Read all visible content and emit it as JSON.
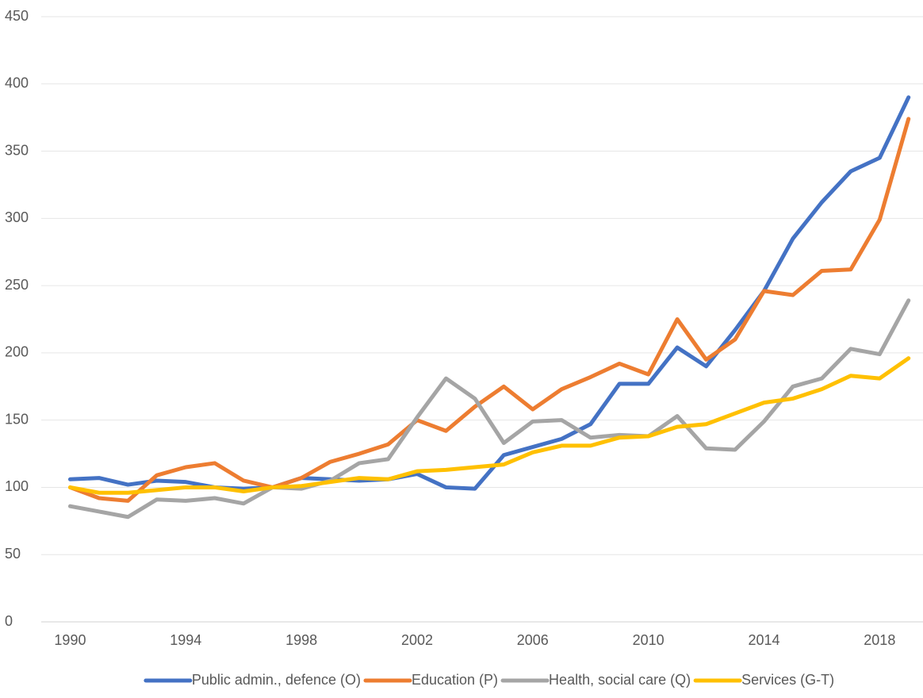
{
  "chart_data": {
    "type": "line",
    "x": [
      1990,
      1991,
      1992,
      1993,
      1994,
      1995,
      1996,
      1997,
      1998,
      1999,
      2000,
      2001,
      2002,
      2003,
      2004,
      2005,
      2006,
      2007,
      2008,
      2009,
      2010,
      2011,
      2012,
      2013,
      2014,
      2015,
      2016,
      2017,
      2018,
      2019
    ],
    "series": [
      {
        "name": "Public admin., defence (O)",
        "color": "#4472c4",
        "values": [
          106,
          107,
          102,
          105,
          104,
          100,
          99,
          100,
          107,
          106,
          105,
          106,
          110,
          100,
          99,
          124,
          130,
          136,
          147,
          177,
          177,
          204,
          190,
          217,
          246,
          285,
          312,
          335,
          345,
          390
        ]
      },
      {
        "name": "Education (P)",
        "color": "#ed7d31",
        "values": [
          100,
          92,
          90,
          109,
          115,
          118,
          105,
          100,
          107,
          119,
          125,
          132,
          150,
          142,
          160,
          175,
          158,
          173,
          182,
          192,
          184,
          225,
          195,
          210,
          246,
          243,
          261,
          262,
          299,
          374
        ]
      },
      {
        "name": "Health, social care (Q)",
        "color": "#a5a5a5",
        "values": [
          86,
          82,
          78,
          91,
          90,
          92,
          88,
          100,
          99,
          105,
          118,
          121,
          152,
          181,
          166,
          133,
          149,
          150,
          137,
          139,
          138,
          153,
          129,
          128,
          149,
          175,
          181,
          203,
          199,
          239
        ]
      },
      {
        "name": "Services (G-T)",
        "color": "#ffc000",
        "values": [
          100,
          96,
          96,
          98,
          100,
          100,
          97,
          100,
          101,
          104,
          107,
          106,
          112,
          113,
          115,
          117,
          126,
          131,
          131,
          137,
          138,
          145,
          147,
          155,
          163,
          166,
          173,
          183,
          181,
          196
        ]
      }
    ],
    "xlim": [
      1989,
      2019.5
    ],
    "xticks": [
      1990,
      1994,
      1998,
      2002,
      2006,
      2010,
      2014,
      2018
    ],
    "ylim": [
      0,
      450
    ],
    "yticks": [
      0,
      50,
      100,
      150,
      200,
      250,
      300,
      350,
      400,
      450
    ],
    "grid": true,
    "legend": "bottom"
  }
}
